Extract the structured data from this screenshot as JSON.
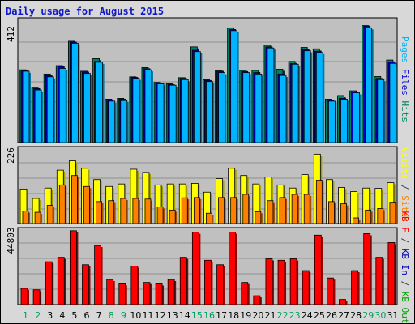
{
  "title": "Daily usage for August 2015",
  "colors": {
    "pages": "#00b4ff",
    "pages_dark": "#00789c",
    "files": "#0000d0",
    "hits": "#00805c",
    "hits_light": "#008060",
    "visits": "#ffff00",
    "visits_dark": "#a0a000",
    "sites": "#ff8000",
    "sites_dark": "#a05000",
    "kbf": "#ff0000",
    "kbf_dark": "#900000",
    "kbin": "#0000c0",
    "kbout": "#00a000",
    "weekend": "#00a060",
    "weekday": "#000000",
    "panel": "#c0c0c0",
    "grid": "#909090"
  },
  "chart_data": [
    {
      "type": "bar",
      "panel": "top",
      "ytick_label": "412",
      "legend": [
        {
          "text": "Pages",
          "color": "#00b4ff"
        },
        {
          "text": "Files",
          "color": "#0000d0"
        },
        {
          "text": "Hits",
          "color": "#008060"
        }
      ],
      "categories": [
        1,
        2,
        3,
        4,
        5,
        6,
        7,
        8,
        9,
        10,
        11,
        12,
        13,
        14,
        15,
        16,
        17,
        18,
        19,
        20,
        21,
        22,
        23,
        24,
        25,
        26,
        27,
        28,
        29,
        30,
        31
      ],
      "ymax": 440,
      "series": [
        {
          "key": "hits",
          "values": [
            260,
            195,
            245,
            275,
            362,
            255,
            300,
            155,
            158,
            235,
            268,
            215,
            210,
            232,
            342,
            225,
            258,
            410,
            258,
            258,
            348,
            262,
            290,
            340,
            335,
            155,
            168,
            185,
            418,
            236,
            295
          ]
        },
        {
          "key": "files",
          "values": [
            257,
            193,
            240,
            272,
            359,
            252,
            290,
            153,
            155,
            233,
            264,
            212,
            207,
            229,
            330,
            222,
            255,
            404,
            254,
            250,
            342,
            245,
            282,
            332,
            326,
            152,
            158,
            181,
            416,
            229,
            288
          ]
        },
        {
          "key": "pages",
          "values": [
            255,
            188,
            235,
            265,
            355,
            247,
            287,
            148,
            150,
            230,
            260,
            210,
            205,
            225,
            325,
            218,
            250,
            400,
            250,
            245,
            338,
            240,
            280,
            328,
            322,
            148,
            155,
            178,
            410,
            225,
            283
          ]
        }
      ]
    },
    {
      "type": "bar",
      "panel": "middle",
      "ytick_label": "226",
      "legend": [
        {
          "text": "Visits",
          "color": "#ffff00"
        },
        {
          "text": "/",
          "color": "#404040"
        },
        {
          "text": "Sites",
          "color": "#ff8000"
        }
      ],
      "categories": [
        1,
        2,
        3,
        4,
        5,
        6,
        7,
        8,
        9,
        10,
        11,
        12,
        13,
        14,
        15,
        16,
        17,
        18,
        19,
        20,
        21,
        22,
        23,
        24,
        25,
        26,
        27,
        28,
        29,
        30,
        31
      ],
      "ymax": 240,
      "series": [
        {
          "key": "visits",
          "values": [
            110,
            80,
            113,
            170,
            200,
            176,
            140,
            118,
            126,
            173,
            163,
            123,
            126,
            126,
            128,
            100,
            143,
            176,
            153,
            126,
            148,
            123,
            113,
            156,
            221,
            140,
            115,
            102,
            113,
            112,
            130
          ]
        },
        {
          "key": "sites",
          "values": [
            40,
            36,
            58,
            123,
            153,
            118,
            70,
            73,
            80,
            80,
            78,
            53,
            43,
            82,
            83,
            33,
            83,
            83,
            93,
            38,
            73,
            83,
            93,
            93,
            138,
            70,
            63,
            18,
            43,
            48,
            68
          ]
        }
      ]
    },
    {
      "type": "bar",
      "panel": "bottom",
      "ytick_label": "44803",
      "legend": [
        {
          "text": "KB F",
          "color": "#ff0000"
        },
        {
          "text": "/",
          "color": "#404040"
        },
        {
          "text": "KB In",
          "color": "#0000c0"
        },
        {
          "text": "/",
          "color": "#404040"
        },
        {
          "text": "KB Out",
          "color": "#00a000"
        }
      ],
      "categories": [
        1,
        2,
        3,
        4,
        5,
        6,
        7,
        8,
        9,
        10,
        11,
        12,
        13,
        14,
        15,
        16,
        17,
        18,
        19,
        20,
        21,
        22,
        23,
        24,
        25,
        26,
        27,
        28,
        29,
        30,
        31
      ],
      "ymax": 51000,
      "series": [
        {
          "key": "kbf",
          "values": [
            11000,
            10000,
            29000,
            32000,
            50000,
            27000,
            40000,
            17000,
            14000,
            26000,
            15000,
            14000,
            17000,
            32000,
            49000,
            30000,
            27000,
            49000,
            15000,
            6000,
            31000,
            30000,
            31000,
            23000,
            47000,
            18000,
            3500,
            23000,
            48000,
            32000,
            42000
          ]
        }
      ]
    }
  ],
  "day_labels": [
    "1",
    "2",
    "3",
    "4",
    "5",
    "6",
    "7",
    "8",
    "9",
    "10",
    "11",
    "12",
    "13",
    "14",
    "15",
    "16",
    "17",
    "18",
    "19",
    "20",
    "21",
    "22",
    "23",
    "24",
    "25",
    "26",
    "27",
    "28",
    "29",
    "30",
    "31"
  ],
  "weekend_days": [
    1,
    2,
    8,
    9,
    15,
    16,
    22,
    23,
    29,
    30
  ]
}
